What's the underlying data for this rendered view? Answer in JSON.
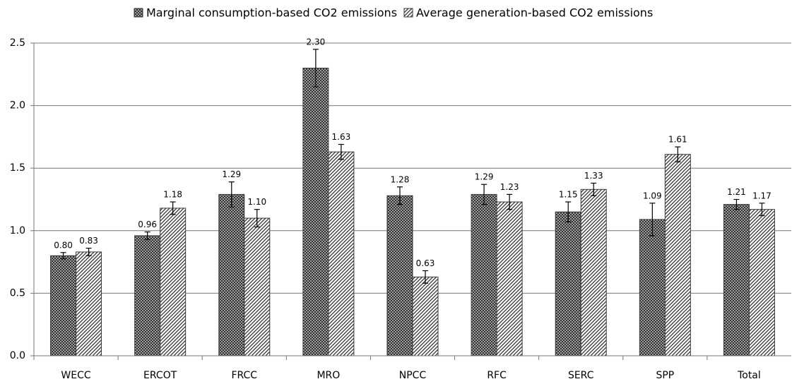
{
  "chart_data": {
    "type": "bar",
    "categories": [
      "WECC",
      "ERCOT",
      "FRCC",
      "MRO",
      "NPCC",
      "RFC",
      "SERC",
      "SPP",
      "Total"
    ],
    "series": [
      {
        "name": "Marginal consumption-based CO2 emissions",
        "color": "#3a3a3a",
        "pattern": "crosshatch",
        "values": [
          0.8,
          0.96,
          1.29,
          2.3,
          1.28,
          1.29,
          1.15,
          1.09,
          1.21
        ],
        "value_labels": [
          "0.80",
          "0.96",
          "1.29",
          "2.30",
          "1.28",
          "1.29",
          "1.15",
          "1.09",
          "1.21"
        ],
        "errors": [
          0.025,
          0.03,
          0.1,
          0.15,
          0.07,
          0.08,
          0.08,
          0.13,
          0.04
        ]
      },
      {
        "name": "Average generation-based CO2 emissions",
        "color": "#3a3a3a",
        "pattern": "diagonal",
        "values": [
          0.83,
          1.18,
          1.1,
          1.63,
          0.63,
          1.23,
          1.33,
          1.61,
          1.17
        ],
        "value_labels": [
          "0.83",
          "1.18",
          "1.10",
          "1.63",
          "0.63",
          "1.23",
          "1.33",
          "1.61",
          "1.17"
        ],
        "errors": [
          0.03,
          0.05,
          0.07,
          0.06,
          0.05,
          0.06,
          0.05,
          0.06,
          0.05
        ]
      }
    ],
    "ylim": [
      0,
      2.5
    ],
    "yticks": [
      {
        "value": 0,
        "label": "0.0"
      },
      0.5,
      {
        "value": 1,
        "label": "1.0"
      },
      1.5,
      {
        "value": 2,
        "label": "2.0"
      },
      2.5
    ],
    "grid": true,
    "legend": "top"
  }
}
